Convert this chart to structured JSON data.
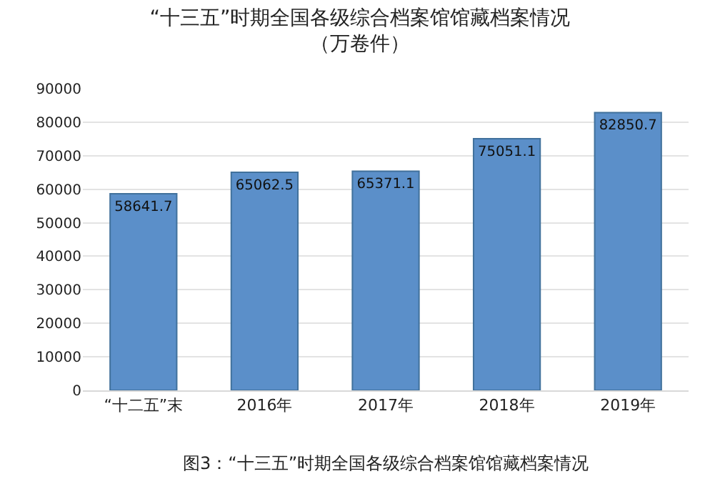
{
  "chart_data": {
    "type": "bar",
    "title": "“十三五”时期全国各级综合档案馆馆藏档案情况",
    "subtitle": "（万卷件）",
    "categories": [
      "“十二五”末",
      "2016年",
      "2017年",
      "2018年",
      "2019年"
    ],
    "values": [
      58641.7,
      65062.5,
      65371.1,
      75051.1,
      82850.7
    ],
    "color": "#5b8fc9",
    "ylim": [
      0,
      90000
    ],
    "yticks": [
      0,
      10000,
      20000,
      30000,
      40000,
      50000,
      60000,
      70000,
      80000,
      90000
    ],
    "grid": "y",
    "data_labels": true,
    "legend": false,
    "annotations": [
      "图3：“十三五”时期全国各级综合档案馆馆藏档案情况"
    ]
  }
}
